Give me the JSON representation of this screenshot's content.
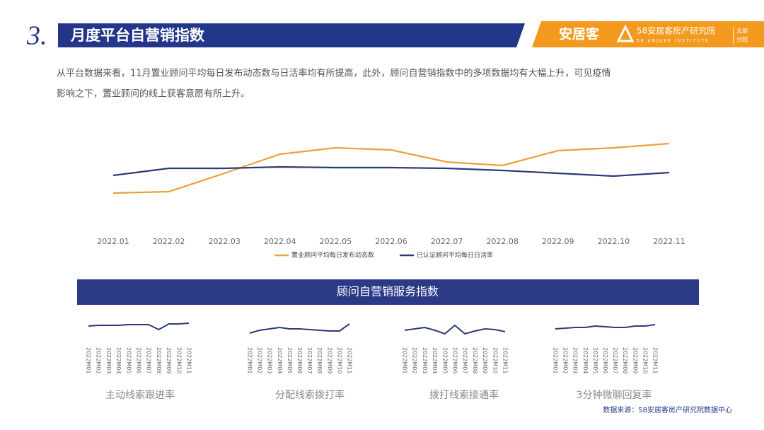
{
  "header": {
    "number": "3.",
    "title": "月度平台自营销指数",
    "logo": "安居客",
    "institute": "58安居客房产研究院",
    "institute_en": "58 ANJUKE INSTITUTE",
    "branch": [
      "北部",
      "分院"
    ]
  },
  "intro": [
    "从平台数据来看，11月置业顾问平均每日发布动态数与日活率均有所提高，此外，顾问自营销指数中的多项数据均有大幅上升，可见疫情",
    "影响之下，置业顾问的线上获客意愿有所上升。"
  ],
  "panel_title": "顾问自营销服务指数",
  "source": "数据来源：58安居客房产研究院数据中心",
  "chart_data": [
    {
      "type": "line",
      "categories": [
        "2022.01",
        "2022.02",
        "2022.03",
        "2022.04",
        "2022.05",
        "2022.06",
        "2022.07",
        "2022.08",
        "2022.09",
        "2022.10",
        "2022.11"
      ],
      "ylim": [
        0,
        110
      ],
      "series": [
        {
          "name": "置业顾问平均每日发布动态数",
          "color": "#e8a23a",
          "values": [
            27,
            29,
            55,
            82,
            91,
            88,
            71,
            66,
            87,
            91,
            97
          ]
        },
        {
          "name": "已认证顾问平均每日日活率",
          "color": "#2c3a7a",
          "values": [
            52,
            62,
            62,
            64,
            63,
            63,
            62,
            59,
            55,
            51,
            56
          ]
        }
      ]
    },
    {
      "type": "line",
      "title": "主动线索跟进率",
      "color": "#2c3a7a",
      "ylim": [
        0,
        40
      ],
      "categories": [
        "2022M01",
        "2022M02",
        "2022M03",
        "2022M04",
        "2022M05",
        "2022M06",
        "2022M07",
        "2022M08",
        "2022M09",
        "2022M10",
        "2022M11"
      ],
      "values": [
        19,
        20,
        20,
        20,
        21,
        21,
        21,
        14,
        22,
        22,
        23
      ]
    },
    {
      "type": "line",
      "title": "分配线索拨打率",
      "color": "#2c3a7a",
      "ylim": [
        0,
        40
      ],
      "categories": [
        "2022M01",
        "2022M02",
        "2022M03",
        "2022M04",
        "2022M05",
        "2022M06",
        "2022M07",
        "2022M08",
        "2022M09",
        "2022M10",
        "2022M11"
      ],
      "values": [
        9,
        13,
        15,
        17,
        15,
        15,
        14,
        13,
        12,
        12,
        22
      ]
    },
    {
      "type": "line",
      "title": "拨打线索接通率",
      "color": "#2c3a7a",
      "ylim": [
        0,
        40
      ],
      "categories": [
        "2022M01",
        "2022M02",
        "2022M03",
        "2022M04",
        "2022M05",
        "2022M06",
        "2022M07",
        "2022M08",
        "2022M09",
        "2022M10",
        "2022M11"
      ],
      "values": [
        13,
        15,
        17,
        13,
        8,
        20,
        8,
        12,
        15,
        14,
        11
      ]
    },
    {
      "type": "line",
      "title": "3分钟微聊回复率",
      "color": "#2c3a7a",
      "ylim": [
        0,
        40
      ],
      "categories": [
        "2022M01",
        "2022M02",
        "2022M03",
        "2022M04",
        "2022M05",
        "2022M06",
        "2022M07",
        "2022M08",
        "2022M09",
        "2022M10",
        "2022M11"
      ],
      "values": [
        15,
        16,
        17,
        17,
        19,
        18,
        17,
        17,
        19,
        19,
        21
      ]
    }
  ]
}
